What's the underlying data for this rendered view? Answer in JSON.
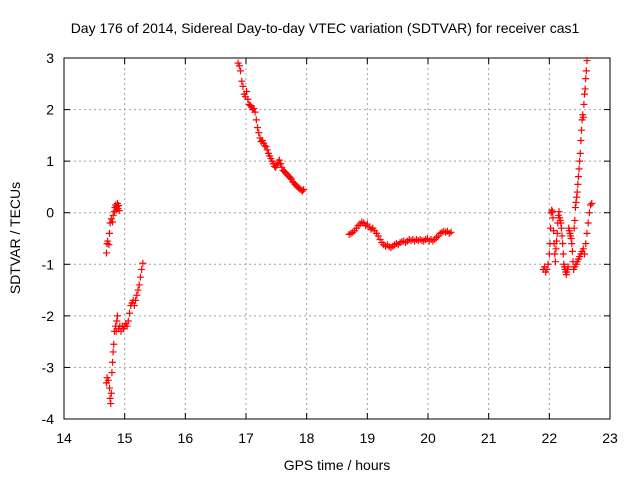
{
  "chart_data": {
    "type": "scatter",
    "title": "Day 176 of 2014, Sidereal Day-to-day VTEC variation (SDTVAR) for receiver cas1",
    "xlabel": "GPS time / hours",
    "ylabel": "SDTVAR / TECUs",
    "xlim": [
      14,
      23
    ],
    "ylim": [
      -4,
      3
    ],
    "xticks": [
      "14",
      "15",
      "16",
      "17",
      "18",
      "19",
      "20",
      "21",
      "22",
      "23"
    ],
    "yticks": [
      "3",
      "2",
      "1",
      "0",
      "-1",
      "-2",
      "-3",
      "-4"
    ],
    "grid": true,
    "marker": "+",
    "color": "#ff0000",
    "series": [
      {
        "name": "SDTVAR",
        "points": [
          [
            14.7,
            -0.78
          ],
          [
            14.71,
            -0.6
          ],
          [
            14.72,
            -0.55
          ],
          [
            14.74,
            -0.62
          ],
          [
            14.75,
            -0.4
          ],
          [
            14.76,
            -0.2
          ],
          [
            14.78,
            -0.12
          ],
          [
            14.8,
            -0.18
          ],
          [
            14.81,
            -0.05
          ],
          [
            14.83,
            0.02
          ],
          [
            14.84,
            0.1
          ],
          [
            14.85,
            0.15
          ],
          [
            14.86,
            0.05
          ],
          [
            14.87,
            0.12
          ],
          [
            14.88,
            0.18
          ],
          [
            14.89,
            0.08
          ],
          [
            14.9,
            0.14
          ],
          [
            14.91,
            0.04
          ],
          [
            14.7,
            -3.3
          ],
          [
            14.71,
            -3.2
          ],
          [
            14.73,
            -3.25
          ],
          [
            14.75,
            -3.4
          ],
          [
            14.76,
            -3.6
          ],
          [
            14.77,
            -3.7
          ],
          [
            14.78,
            -3.5
          ],
          [
            14.79,
            -3.1
          ],
          [
            14.8,
            -2.9
          ],
          [
            14.81,
            -2.7
          ],
          [
            14.82,
            -2.55
          ],
          [
            14.83,
            -2.3
          ],
          [
            14.85,
            -2.2
          ],
          [
            14.86,
            -2.3
          ],
          [
            14.87,
            -2.1
          ],
          [
            14.88,
            -2.0
          ],
          [
            14.9,
            -2.25
          ],
          [
            14.92,
            -2.2
          ],
          [
            14.94,
            -2.3
          ],
          [
            14.96,
            -2.2
          ],
          [
            14.98,
            -2.25
          ],
          [
            15.0,
            -2.2
          ],
          [
            15.02,
            -2.15
          ],
          [
            15.04,
            -2.2
          ],
          [
            15.06,
            -2.1
          ],
          [
            15.08,
            -1.95
          ],
          [
            15.1,
            -1.8
          ],
          [
            15.12,
            -1.75
          ],
          [
            15.14,
            -1.7
          ],
          [
            15.16,
            -1.8
          ],
          [
            15.18,
            -1.7
          ],
          [
            15.2,
            -1.6
          ],
          [
            15.22,
            -1.5
          ],
          [
            15.24,
            -1.4
          ],
          [
            15.26,
            -1.25
          ],
          [
            15.28,
            -1.1
          ],
          [
            15.3,
            -0.98
          ],
          [
            16.87,
            2.9
          ],
          [
            16.89,
            2.85
          ],
          [
            16.91,
            2.75
          ],
          [
            16.93,
            2.55
          ],
          [
            16.95,
            2.45
          ],
          [
            16.97,
            2.3
          ],
          [
            16.99,
            2.25
          ],
          [
            17.01,
            2.35
          ],
          [
            17.03,
            2.2
          ],
          [
            17.05,
            2.1
          ],
          [
            17.07,
            2.08
          ],
          [
            17.09,
            2.05
          ],
          [
            17.11,
            2.0
          ],
          [
            17.13,
            2.02
          ],
          [
            17.15,
            1.95
          ],
          [
            17.17,
            1.8
          ],
          [
            17.19,
            1.65
          ],
          [
            17.21,
            1.55
          ],
          [
            17.23,
            1.45
          ],
          [
            17.25,
            1.38
          ],
          [
            17.27,
            1.4
          ],
          [
            17.29,
            1.35
          ],
          [
            17.31,
            1.3
          ],
          [
            17.33,
            1.28
          ],
          [
            17.35,
            1.22
          ],
          [
            17.37,
            1.15
          ],
          [
            17.39,
            1.1
          ],
          [
            17.41,
            1.05
          ],
          [
            17.43,
            1.0
          ],
          [
            17.45,
            0.95
          ],
          [
            17.47,
            0.9
          ],
          [
            17.49,
            0.88
          ],
          [
            17.51,
            0.92
          ],
          [
            17.53,
            0.98
          ],
          [
            17.55,
            1.02
          ],
          [
            17.57,
            0.95
          ],
          [
            17.59,
            0.88
          ],
          [
            17.61,
            0.82
          ],
          [
            17.63,
            0.8
          ],
          [
            17.65,
            0.78
          ],
          [
            17.67,
            0.75
          ],
          [
            17.69,
            0.72
          ],
          [
            17.71,
            0.7
          ],
          [
            17.73,
            0.68
          ],
          [
            17.75,
            0.65
          ],
          [
            17.77,
            0.6
          ],
          [
            17.79,
            0.58
          ],
          [
            17.81,
            0.55
          ],
          [
            17.83,
            0.52
          ],
          [
            17.85,
            0.5
          ],
          [
            17.87,
            0.48
          ],
          [
            17.89,
            0.46
          ],
          [
            17.91,
            0.44
          ],
          [
            17.93,
            0.42
          ],
          [
            17.95,
            0.45
          ],
          [
            18.7,
            -0.42
          ],
          [
            18.73,
            -0.4
          ],
          [
            18.76,
            -0.38
          ],
          [
            18.79,
            -0.35
          ],
          [
            18.82,
            -0.3
          ],
          [
            18.85,
            -0.25
          ],
          [
            18.88,
            -0.22
          ],
          [
            18.91,
            -0.18
          ],
          [
            18.94,
            -0.2
          ],
          [
            18.97,
            -0.25
          ],
          [
            19.0,
            -0.22
          ],
          [
            19.03,
            -0.28
          ],
          [
            19.06,
            -0.32
          ],
          [
            19.09,
            -0.3
          ],
          [
            19.12,
            -0.35
          ],
          [
            19.15,
            -0.4
          ],
          [
            19.18,
            -0.45
          ],
          [
            19.21,
            -0.52
          ],
          [
            19.24,
            -0.58
          ],
          [
            19.27,
            -0.62
          ],
          [
            19.3,
            -0.65
          ],
          [
            19.33,
            -0.62
          ],
          [
            19.36,
            -0.66
          ],
          [
            19.39,
            -0.68
          ],
          [
            19.42,
            -0.65
          ],
          [
            19.45,
            -0.62
          ],
          [
            19.48,
            -0.6
          ],
          [
            19.51,
            -0.62
          ],
          [
            19.54,
            -0.58
          ],
          [
            19.57,
            -0.56
          ],
          [
            19.6,
            -0.55
          ],
          [
            19.63,
            -0.58
          ],
          [
            19.66,
            -0.55
          ],
          [
            19.69,
            -0.52
          ],
          [
            19.72,
            -0.54
          ],
          [
            19.75,
            -0.52
          ],
          [
            19.78,
            -0.55
          ],
          [
            19.81,
            -0.52
          ],
          [
            19.84,
            -0.54
          ],
          [
            19.87,
            -0.52
          ],
          [
            19.9,
            -0.54
          ],
          [
            19.93,
            -0.55
          ],
          [
            19.96,
            -0.52
          ],
          [
            19.99,
            -0.5
          ],
          [
            20.02,
            -0.55
          ],
          [
            20.05,
            -0.52
          ],
          [
            20.08,
            -0.55
          ],
          [
            20.11,
            -0.52
          ],
          [
            20.14,
            -0.48
          ],
          [
            20.17,
            -0.45
          ],
          [
            20.2,
            -0.4
          ],
          [
            20.23,
            -0.38
          ],
          [
            20.26,
            -0.36
          ],
          [
            20.29,
            -0.38
          ],
          [
            20.32,
            -0.36
          ],
          [
            20.35,
            -0.4
          ],
          [
            20.38,
            -0.38
          ],
          [
            21.9,
            -1.1
          ],
          [
            21.92,
            -1.05
          ],
          [
            21.94,
            -1.15
          ],
          [
            21.96,
            -1.1
          ],
          [
            21.98,
            -1.0
          ],
          [
            22.0,
            -0.8
          ],
          [
            22.01,
            -0.6
          ],
          [
            22.02,
            -0.3
          ],
          [
            22.03,
            0.0
          ],
          [
            22.04,
            0.05
          ],
          [
            22.05,
            0.02
          ],
          [
            22.06,
            -0.1
          ],
          [
            22.07,
            -0.35
          ],
          [
            22.08,
            -0.6
          ],
          [
            22.09,
            -0.8
          ],
          [
            22.1,
            -0.95
          ],
          [
            22.11,
            -0.7
          ],
          [
            22.12,
            -0.55
          ],
          [
            22.13,
            -0.4
          ],
          [
            22.14,
            -0.2
          ],
          [
            22.15,
            -0.05
          ],
          [
            22.16,
            0.02
          ],
          [
            22.17,
            -0.1
          ],
          [
            22.18,
            -0.15
          ],
          [
            22.19,
            -0.2
          ],
          [
            22.2,
            -0.3
          ],
          [
            22.21,
            -0.45
          ],
          [
            22.22,
            -0.6
          ],
          [
            22.23,
            -0.8
          ],
          [
            22.24,
            -1.0
          ],
          [
            22.25,
            -1.05
          ],
          [
            22.26,
            -1.1
          ],
          [
            22.27,
            -1.15
          ],
          [
            22.28,
            -1.2
          ],
          [
            22.29,
            -1.15
          ],
          [
            22.3,
            -1.1
          ],
          [
            22.31,
            -1.05
          ],
          [
            22.32,
            -0.3
          ],
          [
            22.33,
            -0.35
          ],
          [
            22.34,
            -0.4
          ],
          [
            22.35,
            -0.45
          ],
          [
            22.36,
            -0.5
          ],
          [
            22.37,
            -0.6
          ],
          [
            22.38,
            -0.75
          ],
          [
            22.39,
            -0.95
          ],
          [
            22.4,
            -1.1
          ],
          [
            22.41,
            -0.3
          ],
          [
            22.42,
            -0.15
          ],
          [
            22.43,
            0.1
          ],
          [
            22.44,
            0.2
          ],
          [
            22.45,
            0.3
          ],
          [
            22.46,
            0.4
          ],
          [
            22.47,
            0.55
          ],
          [
            22.48,
            0.7
          ],
          [
            22.49,
            0.85
          ],
          [
            22.5,
            1.0
          ],
          [
            22.51,
            1.15
          ],
          [
            22.52,
            1.4
          ],
          [
            22.53,
            1.6
          ],
          [
            22.54,
            1.8
          ],
          [
            22.55,
            1.9
          ],
          [
            22.56,
            1.85
          ],
          [
            22.57,
            2.1
          ],
          [
            22.58,
            2.3
          ],
          [
            22.59,
            2.4
          ],
          [
            22.6,
            2.6
          ],
          [
            22.61,
            2.75
          ],
          [
            22.62,
            2.95
          ],
          [
            22.42,
            -1.05
          ],
          [
            22.44,
            -1.0
          ],
          [
            22.46,
            -0.95
          ],
          [
            22.48,
            -0.9
          ],
          [
            22.5,
            -0.85
          ],
          [
            22.52,
            -0.8
          ],
          [
            22.54,
            -0.75
          ],
          [
            22.56,
            -0.7
          ],
          [
            22.58,
            -0.8
          ],
          [
            22.6,
            -0.6
          ],
          [
            22.62,
            -0.4
          ],
          [
            22.64,
            -0.2
          ],
          [
            22.66,
            0.0
          ],
          [
            22.68,
            0.15
          ],
          [
            22.7,
            0.18
          ]
        ]
      }
    ]
  }
}
